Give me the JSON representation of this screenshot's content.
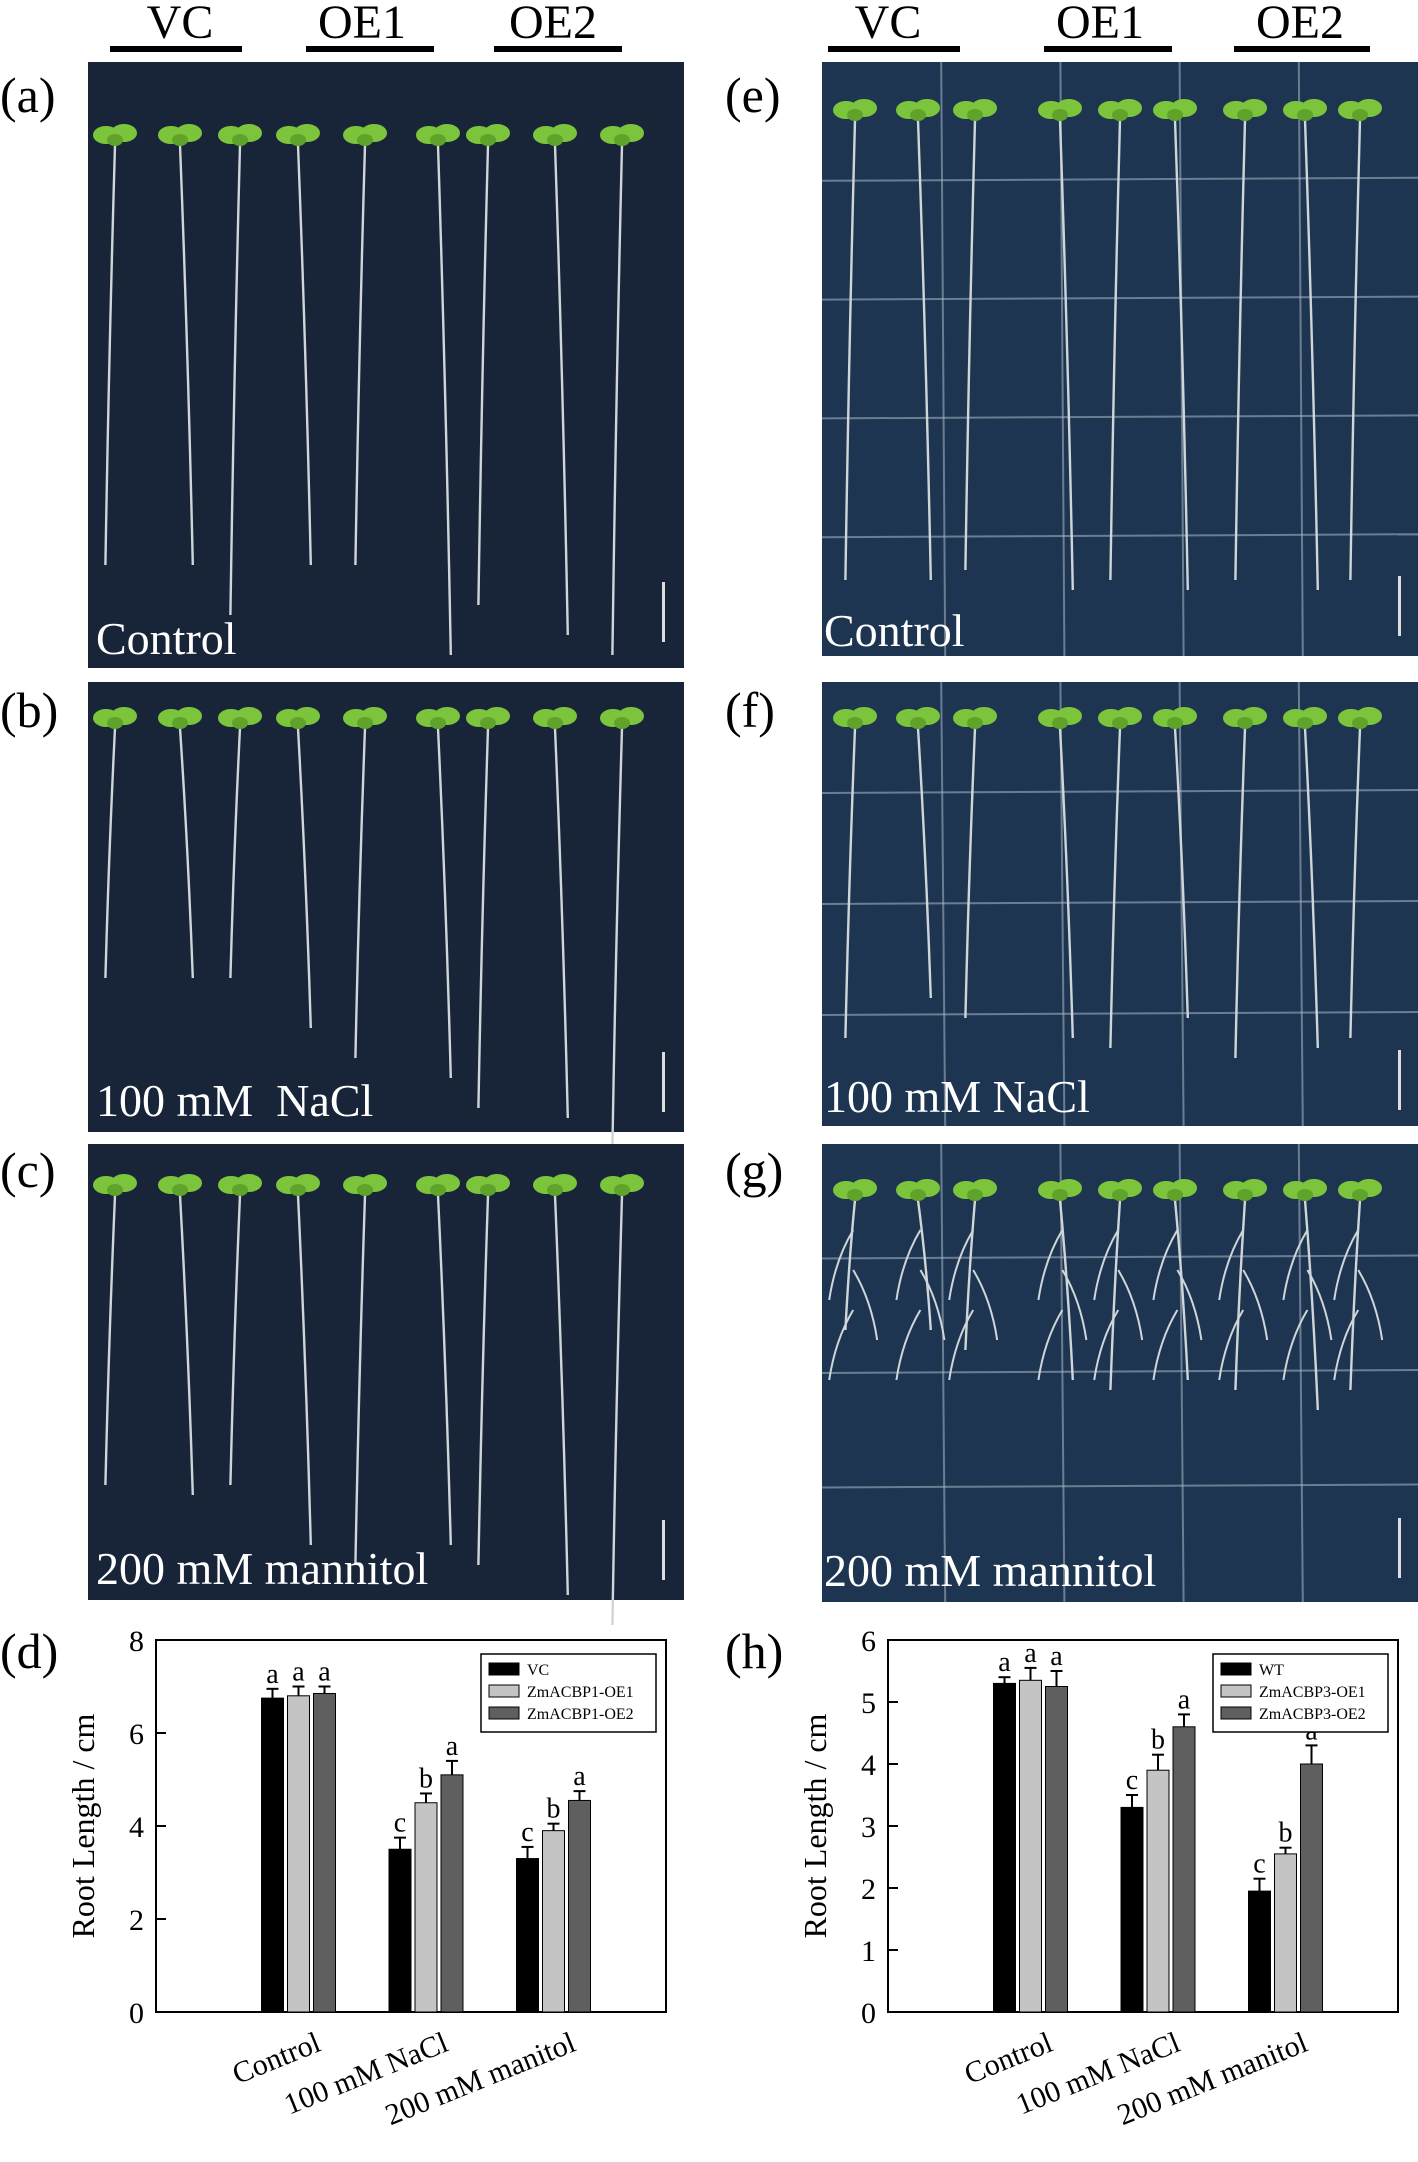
{
  "left": {
    "groups": [
      "VC",
      "OE1",
      "OE2"
    ],
    "panels": [
      {
        "letter": "(a)",
        "treatment": "Control"
      },
      {
        "letter": "(b)",
        "treatment": "100 mM  NaCl"
      },
      {
        "letter": "(c)",
        "treatment": "200 mM mannitol"
      }
    ]
  },
  "right": {
    "groups": [
      "VC",
      "OE1",
      "OE2"
    ],
    "panels": [
      {
        "letter": "(e)",
        "treatment": "Control"
      },
      {
        "letter": "(f)",
        "treatment": "100 mM NaCl"
      },
      {
        "letter": "(g)",
        "treatment": "200 mM mannitol"
      }
    ]
  },
  "colors": {
    "plate_dark": "#182538",
    "plate_blue": "#1e3552",
    "seedling": "#7cc43c",
    "root": "#d0d6d8",
    "grid_line": "#aab8c4"
  },
  "chart_data": [
    {
      "panel": "(d)",
      "type": "bar",
      "categories": [
        "Control",
        "100 mM NaCl",
        "200 mM manitol"
      ],
      "ylabel": "Root Length / cm",
      "ylim": [
        0,
        8
      ],
      "yticks": [
        0,
        2,
        4,
        6,
        8
      ],
      "legend_position": "top-right",
      "series": [
        {
          "name": "VC",
          "color": "#000000",
          "values": [
            6.75,
            3.5,
            3.3
          ],
          "errors": [
            0.2,
            0.25,
            0.25
          ],
          "letters": [
            "a",
            "c",
            "c"
          ]
        },
        {
          "name": "ZmACBP1-OE1",
          "color": "#c4c4c4",
          "values": [
            6.8,
            4.5,
            3.9
          ],
          "errors": [
            0.2,
            0.2,
            0.15
          ],
          "letters": [
            "a",
            "b",
            "b"
          ]
        },
        {
          "name": "ZmACBP1-OE2",
          "color": "#5f5f5f",
          "values": [
            6.85,
            5.1,
            4.55
          ],
          "errors": [
            0.15,
            0.3,
            0.2
          ],
          "letters": [
            "a",
            "a",
            "a"
          ]
        }
      ]
    },
    {
      "panel": "(h)",
      "type": "bar",
      "categories": [
        "Control",
        "100 mM NaCl",
        "200 mM manitol"
      ],
      "ylabel": "Root Length / cm",
      "ylim": [
        0,
        6
      ],
      "yticks": [
        0,
        1,
        2,
        3,
        4,
        5,
        6
      ],
      "legend_position": "top-right",
      "series": [
        {
          "name": "WT",
          "color": "#000000",
          "values": [
            5.3,
            3.3,
            1.95
          ],
          "errors": [
            0.1,
            0.2,
            0.2
          ],
          "letters": [
            "a",
            "c",
            "c"
          ]
        },
        {
          "name": "ZmACBP3-OE1",
          "color": "#c4c4c4",
          "values": [
            5.35,
            3.9,
            2.55
          ],
          "errors": [
            0.2,
            0.25,
            0.1
          ],
          "letters": [
            "a",
            "b",
            "b"
          ]
        },
        {
          "name": "ZmACBP3-OE2",
          "color": "#5f5f5f",
          "values": [
            5.25,
            4.6,
            4.0
          ],
          "errors": [
            0.25,
            0.2,
            0.3
          ],
          "letters": [
            "a",
            "a",
            "a"
          ]
        }
      ]
    }
  ]
}
